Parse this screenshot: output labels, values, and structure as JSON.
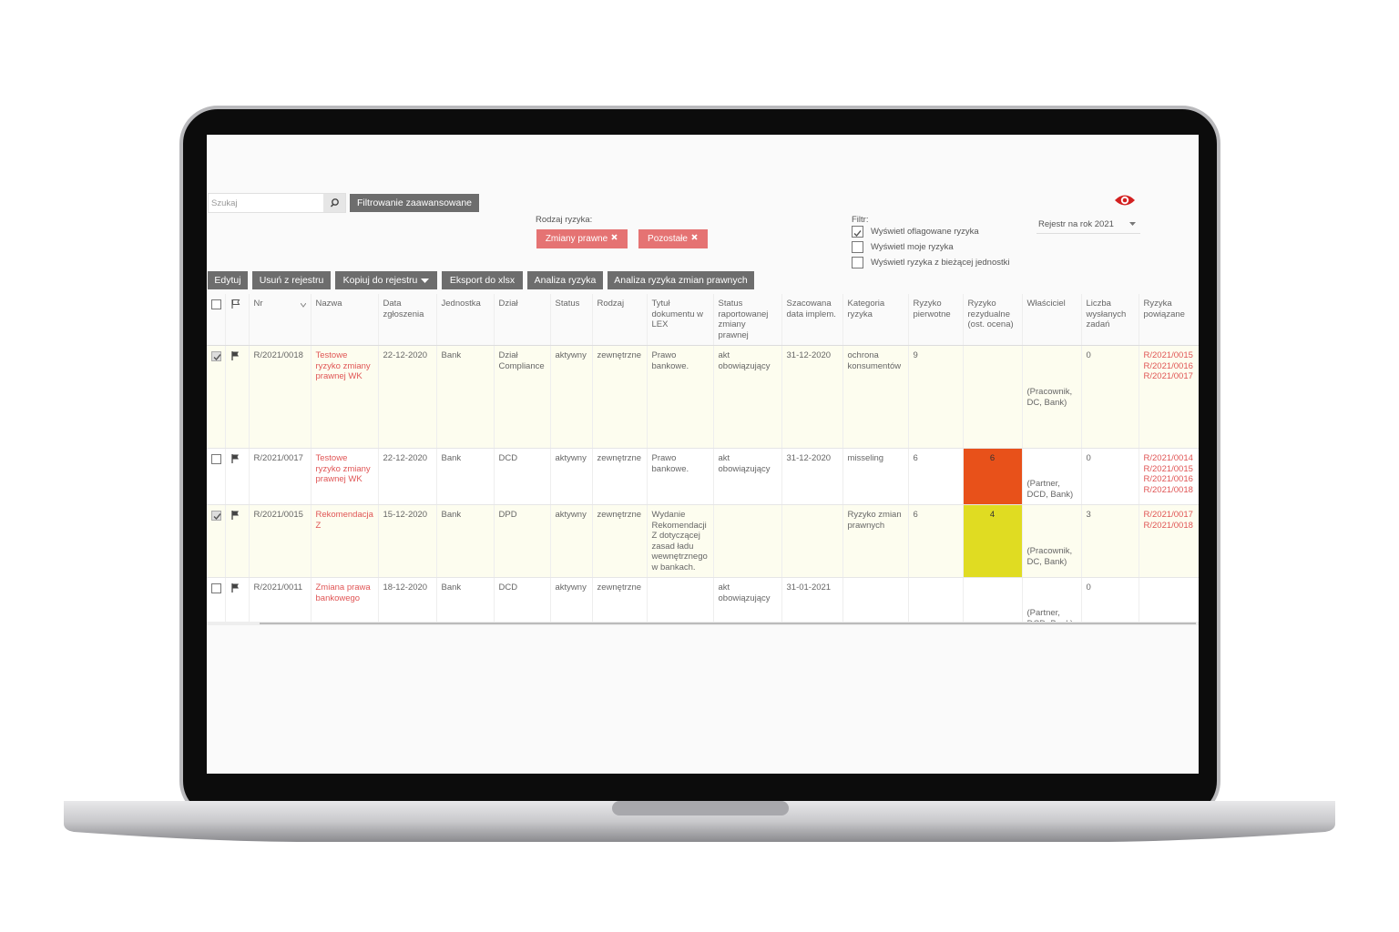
{
  "toolbar": {
    "search_placeholder": "Szukaj",
    "advanced_filter": "Filtrowanie zaawansowane",
    "risk_type_label": "Rodzaj ryzyka:",
    "chips": [
      "Zmiany prawne",
      "Pozostałe"
    ],
    "filter_label": "Filtr:",
    "filter_options": [
      {
        "label": "Wyświetl oflagowane ryzyka",
        "checked": true
      },
      {
        "label": "Wyświetl moje ryzyka",
        "checked": false
      },
      {
        "label": "Wyświetl ryzyka z bieżącej jednostki",
        "checked": false
      }
    ],
    "register_select": "Rejestr na rok 2021",
    "actions": [
      "Edytuj",
      "Usuń z rejestru",
      "Kopiuj do rejestru",
      "Eksport do xlsx",
      "Analiza ryzyka",
      "Analiza ryzyka zmian prawnych"
    ]
  },
  "table": {
    "columns": [
      "Nr",
      "Nazwa",
      "Data zgłoszenia",
      "Jednostka",
      "Dział",
      "Status",
      "Rodzaj",
      "Tytuł dokumentu w LEX",
      "Status raportowanej zmiany prawnej",
      "Szacowana data implem.",
      "Kategoria ryzyka",
      "Ryzyko pierwotne",
      "Ryzyko rezydualne (ost. ocena)",
      "Właściciel",
      "Liczba wysłanych zadań",
      "Ryzyka powiązane"
    ],
    "rows": [
      {
        "checked": true,
        "nr": "R/2021/0018",
        "nazwa": "Testowe ryzyko zmiany prawnej WK",
        "data": "22-12-2020",
        "jednostka": "Bank",
        "dzial": "Dział Compliance",
        "status": "aktywny",
        "rodzaj": "zewnętrzne",
        "tytul": "Prawo bankowe.",
        "status_rap": "akt obowiązujący",
        "szacowana": "31-12-2020",
        "kategoria": "ochrona konsumentów",
        "pierwotne": "9",
        "wlasciciel": "(Pracownik, DC, Bank)",
        "liczba": "0",
        "powiazane": [
          "R/2021/0015",
          "R/2021/0016",
          "R/2021/0017"
        ]
      },
      {
        "checked": false,
        "nr": "R/2021/0017",
        "nazwa": "Testowe ryzyko zmiany prawnej WK",
        "data": "22-12-2020",
        "jednostka": "Bank",
        "dzial": "DCD",
        "status": "aktywny",
        "rodzaj": "zewnętrzne",
        "tytul": "Prawo bankowe.",
        "status_rap": "akt obowiązujący",
        "szacowana": "31-12-2020",
        "kategoria": "misseling",
        "pierwotne": "6",
        "rezydualne": "6",
        "rezydualne_color": "#e8511a",
        "wlasciciel": "(Partner, DCD, Bank)",
        "liczba": "0",
        "powiazane": [
          "R/2021/0014",
          "R/2021/0015",
          "R/2021/0016",
          "R/2021/0018"
        ]
      },
      {
        "checked": true,
        "nr": "R/2021/0015",
        "nazwa": "Rekomendacja Z",
        "data": "15-12-2020",
        "jednostka": "Bank",
        "dzial": "DPD",
        "status": "aktywny",
        "rodzaj": "zewnętrzne",
        "tytul": "Wydanie Rekomendacji Z dotyczącej zasad ładu wewnętrznego w bankach.",
        "kategoria": "Ryzyko zmian prawnych",
        "pierwotne": "6",
        "rezydualne": "4",
        "rezydualne_color": "#e0dc22",
        "wlasciciel": "(Pracownik, DC, Bank)",
        "liczba": "3",
        "powiazane": [
          "R/2021/0017",
          "R/2021/0018"
        ]
      },
      {
        "checked": false,
        "nr": "R/2021/0011",
        "nazwa": "Zmiana prawa bankowego",
        "data": "18-12-2020",
        "jednostka": "Bank",
        "dzial": "DCD",
        "status": "aktywny",
        "rodzaj": "zewnętrzne",
        "status_rap": "akt obowiązujący",
        "szacowana": "31-01-2021",
        "wlasciciel": "(Partner, DCD, Bank)",
        "liczba": "0"
      }
    ]
  }
}
